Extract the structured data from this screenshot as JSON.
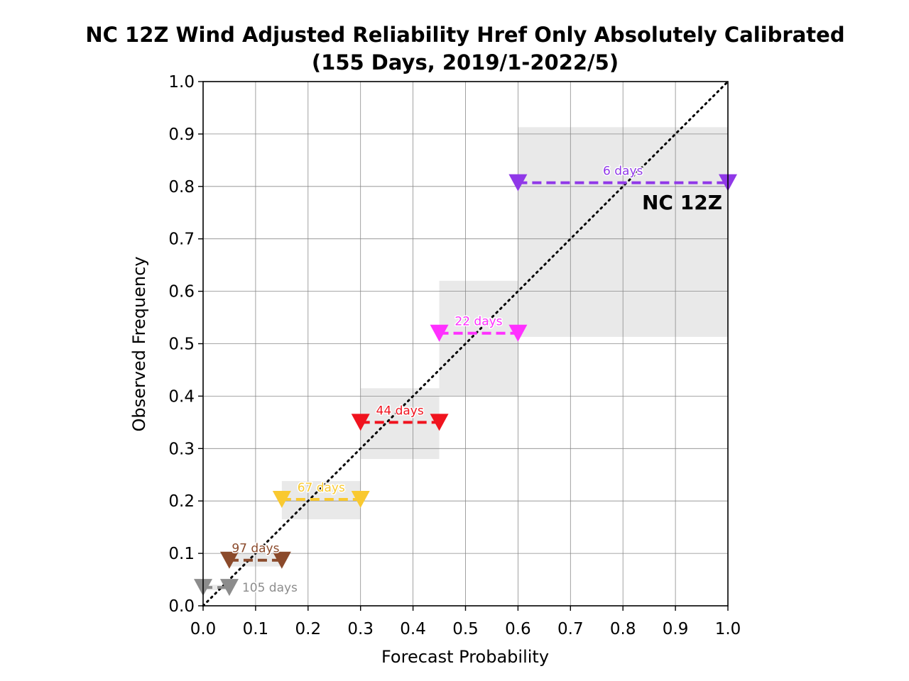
{
  "chart_data": {
    "type": "reliability",
    "title_line1": "NC 12Z Wind Adjusted Reliability Href Only Absolutely Calibrated",
    "title_line2": "(155 Days, 2019/1-2022/5)",
    "xlabel": "Forecast Probability",
    "ylabel": "Observed Frequency",
    "xlim": [
      0,
      1
    ],
    "ylim": [
      0,
      1
    ],
    "xticks": [
      "0.0",
      "0.1",
      "0.2",
      "0.3",
      "0.4",
      "0.5",
      "0.6",
      "0.7",
      "0.8",
      "0.9",
      "1.0"
    ],
    "yticks": [
      "0.0",
      "0.1",
      "0.2",
      "0.3",
      "0.4",
      "0.5",
      "0.6",
      "0.7",
      "0.8",
      "0.9",
      "1.0"
    ],
    "grid": true,
    "diagonal": "dotted",
    "annotation": "NC 12Z",
    "bins": [
      {
        "label": "105 days",
        "x_lo": 0.0,
        "x_hi": 0.05,
        "y": 0.035,
        "y_lo": 0.03,
        "y_hi": 0.04,
        "color": "#8c8c8c"
      },
      {
        "label": "97 days",
        "x_lo": 0.05,
        "x_hi": 0.15,
        "y": 0.087,
        "y_lo": 0.075,
        "y_hi": 0.1,
        "color": "#8b4a2b"
      },
      {
        "label": "67 days",
        "x_lo": 0.15,
        "x_hi": 0.3,
        "y": 0.203,
        "y_lo": 0.165,
        "y_hi": 0.238,
        "color": "#f9c930"
      },
      {
        "label": "44 days",
        "x_lo": 0.3,
        "x_hi": 0.45,
        "y": 0.35,
        "y_lo": 0.28,
        "y_hi": 0.415,
        "color": "#f0131e"
      },
      {
        "label": "22 days",
        "x_lo": 0.45,
        "x_hi": 0.6,
        "y": 0.52,
        "y_lo": 0.4,
        "y_hi": 0.62,
        "color": "#ff30ff"
      },
      {
        "label": "6 days",
        "x_lo": 0.6,
        "x_hi": 1.0,
        "y": 0.807,
        "y_lo": 0.513,
        "y_hi": 0.913,
        "color": "#9038e8"
      }
    ]
  }
}
